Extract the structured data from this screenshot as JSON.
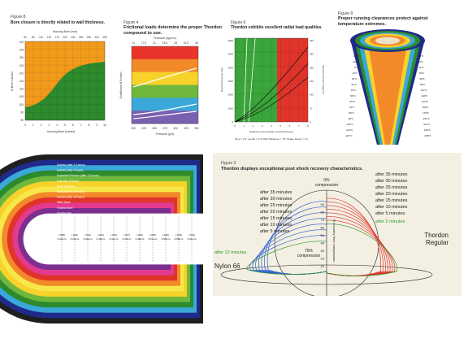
{
  "fig8": {
    "figure": "Figure 8",
    "title": "Bore closure is directly related to wall thickness.",
    "top_axis_label": "Housing Bore (mm)",
    "top_ticks": [
      "50",
      "80",
      "110",
      "140",
      "170",
      "200",
      "230",
      "260",
      "290",
      "320",
      "350"
    ],
    "bottom_axis_label": "Housing Bore (inches)",
    "bottom_ticks": [
      "0",
      "1",
      "2",
      "3",
      "4",
      "5",
      "6",
      "7",
      "8",
      "9",
      "10"
    ],
    "y_axis_label": "% Bore Closure",
    "y_ticks": [
      "140",
      "135",
      "130",
      "125",
      "120",
      "115",
      "110",
      "105",
      "100",
      "95",
      "90"
    ],
    "colors": {
      "upper": "#f39a1a",
      "lower": "#2d8a2d"
    }
  },
  "fig4": {
    "figure": "Figure 4",
    "title_line1": "Frictional loads determine the proper Thordon",
    "title_line2": "compound to use.",
    "top_axis_label": "Pressure (kg/cm²)",
    "top_ticks": [
      "14",
      "17.5",
      "21",
      "24.5",
      "28",
      "31.5",
      "35"
    ],
    "bottom_axis_label": "Pressure (psi)",
    "bottom_ticks": [
      "200",
      "225",
      "250",
      "275",
      "300",
      "325",
      "350"
    ],
    "y_axis_label": "Coefficient of Friction",
    "bands": [
      "#e8342b",
      "#f28a2a",
      "#f7d22a",
      "#6fb83d",
      "#3aa8d8",
      "#7b5fb0"
    ]
  },
  "fig6": {
    "figure": "Figure 6",
    "title": "Thordon exhibits excellent radial load qualities.",
    "y_axis_label": "Bearing Pressure (psi)",
    "y_ticks": [
      "6000",
      "5000",
      "4000",
      "3000",
      "2000",
      "1000",
      "0"
    ],
    "y2_axis_label": "Bearing Pressure (kg/cm²)",
    "y2_ticks": [
      "420",
      "350",
      "280",
      "210",
      "140",
      "70",
      "0"
    ],
    "x_axis_label": "Deflection (percentage of wall thickness)",
    "x_ticks": [
      "0",
      "1",
      "2",
      "3",
      "4",
      "5",
      "6",
      "7",
      "8"
    ],
    "footer": "Bore = 2.0\"   Length = 2.0\"   Wall Thickness = .15\"   Shape Factor = 3.3",
    "colors": {
      "left": "#3aa53a",
      "right": "#e0342b"
    }
  },
  "fig9": {
    "figure": "Figure 9",
    "title_line1": "Proper running clearances protect against",
    "title_line2": "temperature extremes.",
    "labels": [
      "-30°C",
      "-10°C",
      "0°C",
      "10°C",
      "20°C",
      "30°C",
      "40°C",
      "50°C",
      "60°C",
      "70°C",
      "80°C",
      "90°C",
      "100°C",
      "110°C",
      "120°C"
    ],
    "labels_right": [
      "-22°F",
      "14°F",
      "32°F",
      "50°F",
      "68°F",
      "86°F",
      "104°F",
      "122°F",
      "140°F",
      "158°F",
      "176°F",
      "194°F",
      "212°F",
      "230°F",
      "248°F"
    ],
    "colors": [
      "#1f2a8a",
      "#2d8a2d",
      "#3aa8d8",
      "#f7d22a",
      "#f28a2a",
      "#e0342b"
    ]
  },
  "rainbow": {
    "legend": [
      "Swelled (after 2.5 hours)",
      "Swelled (after 4 hours)",
      "Expanded Pressure (after 1.5 hours)",
      "Built after (8 hours)",
      "Shaft Tolerance",
      "Shaft (after 16.26 hours)",
      "Swelled (after 36 hours)",
      "Fitted Nylon",
      "Thordon Bore",
      "Thordon Std",
      "Thordon Bearing"
    ],
    "dims": [
      "(.024)\n0.61mm",
      "(.023)\n0.58mm",
      "(.022)\n0.55mm",
      "(.020)\n0.51mm",
      "(.019)\n0.48mm",
      "(.017)\n0.43mm",
      "(.016)\n0.41mm",
      "(.014)\n0.36mm",
      "(.012)\n0.30mm",
      "(.010)\n0.25mm",
      "(.008)\n0.20mm"
    ],
    "colors": [
      "#1f1f1f",
      "#1f2a8a",
      "#3aa8d8",
      "#2d8a2d",
      "#6fb83d",
      "#f7d22a",
      "#f7e84a",
      "#f28a2a",
      "#e0342b",
      "#e23a8f",
      "#7b2f8f"
    ]
  },
  "fig3": {
    "figure": "Figure 3",
    "title": "Thordon displays exceptional post shock recovery characteristics.",
    "top_label_line1": "0%",
    "top_label_line2": "compression",
    "mid_label_line1": "75%",
    "mid_label_line2": "compression",
    "axis_label": "% recovery from compression",
    "left_times": [
      "after 35 minutes",
      "after 30 minutes",
      "after 25 minutes",
      "after 20 minutes",
      "after 15 minutes",
      "after 10 minutes",
      "after 5 minutes"
    ],
    "left_green": "after 12 minutes",
    "right_times": [
      "after 35 minutes",
      "after 30 minutes",
      "after 25 minutes",
      "after 20 minutes",
      "after 15 minutes",
      "after 10 minutes",
      "after 5 minutes"
    ],
    "right_green": "after 2 minutes",
    "left_name": "Nylon 66",
    "right_name_line1": "Thordon",
    "right_name_line2": "Regular",
    "scale": [
      "90",
      "80",
      "70",
      "60",
      "50",
      "40",
      "30",
      "20",
      "10"
    ],
    "colors": {
      "nylon": "#2f5fd0",
      "thordon": "#e0342b",
      "green": "#2a9a2a",
      "bg": "#f3efe2"
    }
  }
}
